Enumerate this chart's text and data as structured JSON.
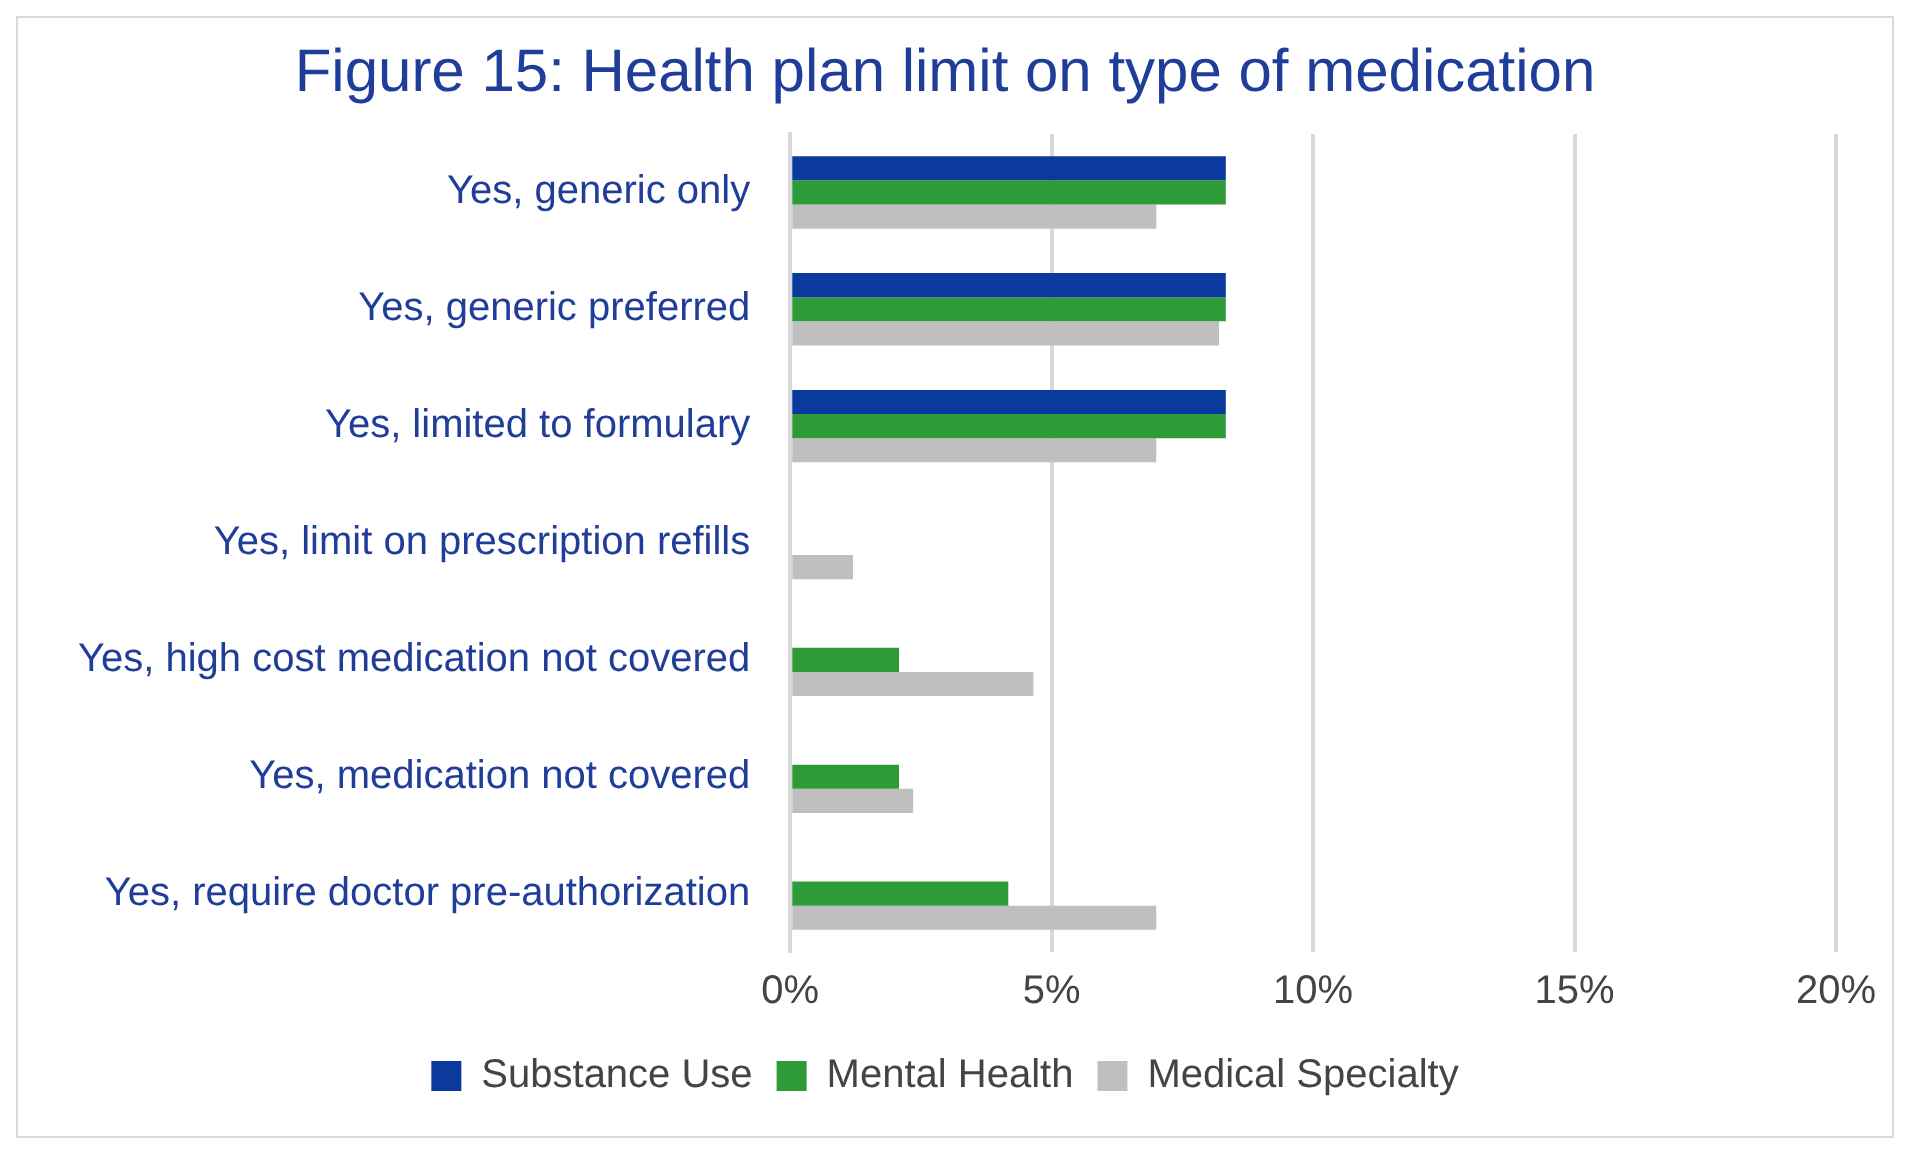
{
  "chart_data": {
    "type": "bar",
    "orientation": "horizontal",
    "title": "Figure 15: Health plan limit on type of medication",
    "categories": [
      "Yes, generic only",
      "Yes, generic preferred",
      "Yes, limited to formulary",
      "Yes, limit on prescription refills",
      "Yes, high cost medication not covered",
      "Yes, medication not covered",
      "Yes, require doctor pre-authorization"
    ],
    "series": [
      {
        "name": "Substance Use",
        "color": "#0b3a9e",
        "values": [
          8.33,
          8.33,
          8.33,
          0,
          0,
          0,
          0
        ]
      },
      {
        "name": "Mental Health",
        "color": "#2e9a38",
        "values": [
          8.33,
          8.33,
          8.33,
          0,
          2.08,
          2.08,
          4.17
        ]
      },
      {
        "name": "Medical Specialty",
        "color": "#bfbfbf",
        "values": [
          7.0,
          8.2,
          7.0,
          1.2,
          4.65,
          2.35,
          7.0
        ]
      }
    ],
    "xlim": [
      0,
      20
    ],
    "xticks": [
      {
        "value": 0,
        "label": "0%"
      },
      {
        "value": 5,
        "label": "5%"
      },
      {
        "value": 10,
        "label": "10%"
      },
      {
        "value": 15,
        "label": "15%"
      },
      {
        "value": 20,
        "label": "20%"
      }
    ],
    "grid": "x",
    "legend": "bottom"
  }
}
